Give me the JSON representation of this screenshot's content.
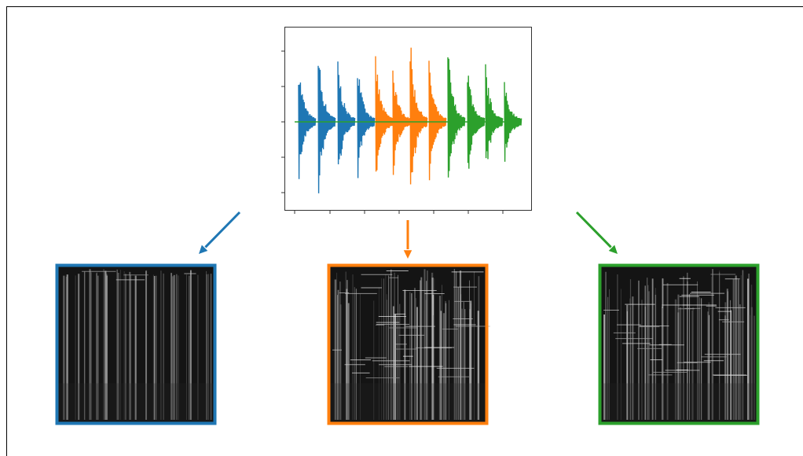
{
  "segments": [
    {
      "color": "#1f77b4"
    },
    {
      "color": "#ff7f0e"
    },
    {
      "color": "#2ca02c"
    }
  ]
}
